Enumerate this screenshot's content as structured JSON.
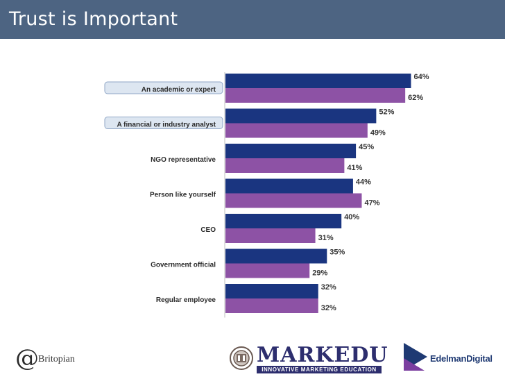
{
  "header": {
    "title": "Trust is Important"
  },
  "chart_data": {
    "type": "bar",
    "orientation": "horizontal",
    "categories": [
      "An academic or expert",
      "A financial or industry analyst",
      "NGO representative",
      "Person like yourself",
      "CEO",
      "Government official",
      "Regular employee"
    ],
    "highlighted_categories": [
      "An academic or expert",
      "A financial or industry analyst"
    ],
    "series": [
      {
        "values": [
          64,
          52,
          45,
          44,
          40,
          35,
          32
        ],
        "color": "#1a3580"
      },
      {
        "values": [
          62,
          49,
          41,
          47,
          31,
          29,
          32
        ],
        "color": "#8d52a5"
      }
    ],
    "value_suffix": "%",
    "xlim": [
      0,
      100
    ],
    "grid": false,
    "legend": "none"
  },
  "footer": {
    "logos": [
      {
        "name": "Britopian",
        "text": "Britopian",
        "symbol": "@"
      },
      {
        "name": "Markedu",
        "text": "MARKEDU",
        "tagline": "INNOVATIVE MARKETING EDUCATION"
      },
      {
        "name": "Edelman Digital",
        "text": "EdelmanDigital"
      }
    ]
  },
  "colors": {
    "title_bar": "#4d6482",
    "label_pill": "#dde6f1",
    "label_pill_border": "#8fa6c6"
  }
}
